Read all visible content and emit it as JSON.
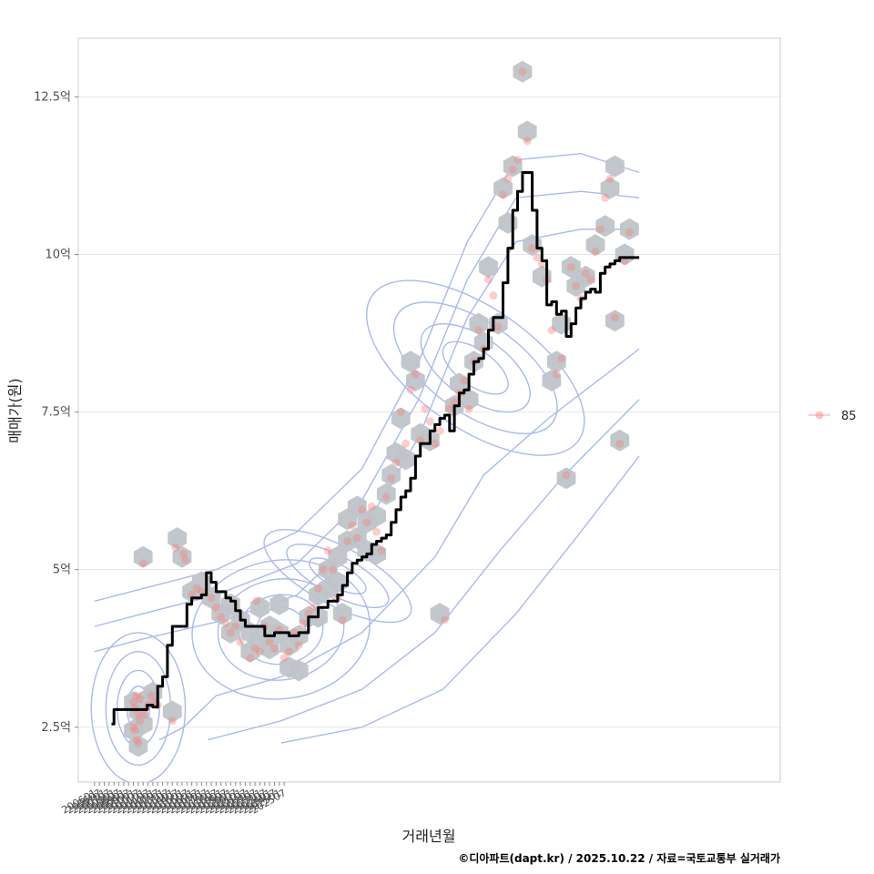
{
  "chart_data": {
    "type": "scatter",
    "xlabel": "거래년월",
    "ylabel": "매매가(원)",
    "caption": "©디아파트(dapt.kr) / 2025.10.22 / 자료=국토교통부 실거래가",
    "legend": {
      "label": "85",
      "position": "right"
    },
    "colors": {
      "points": "#f4837d",
      "line": "#000000",
      "contour": "#a9b9ee",
      "hex": "#bfc4c9",
      "grid": "#e5e5e5",
      "panel_border": "#cccccc"
    },
    "x_ticks": [
      "200601",
      "200607",
      "200701",
      "200707",
      "200801",
      "200807",
      "200901",
      "200907",
      "201001",
      "201007",
      "201101",
      "201107",
      "201201",
      "201207",
      "201301",
      "201307",
      "201401",
      "201407",
      "201501",
      "201507",
      "201601",
      "201607",
      "201701",
      "201707",
      "201801",
      "201807",
      "201901",
      "201907",
      "202001",
      "202007",
      "202101",
      "202107",
      "202201",
      "202207",
      "202301",
      "202307",
      "202401",
      "202407",
      "202501",
      "202507"
    ],
    "y_ticks": [
      {
        "value": 2.5,
        "label": "2.5억"
      },
      {
        "value": 5,
        "label": "5억"
      },
      {
        "value": 7.5,
        "label": "7.5억"
      },
      {
        "value": 10,
        "label": "10억"
      },
      {
        "value": 12.5,
        "label": "12.5억"
      }
    ],
    "x_range_months": [
      -20,
      846
    ],
    "y_range": [
      1.63,
      13.43
    ],
    "series": [
      {
        "name": "median",
        "type": "line",
        "points": [
          [
            21,
            2.55
          ],
          [
            24,
            2.78
          ],
          [
            40,
            2.78
          ],
          [
            57,
            2.78
          ],
          [
            60,
            2.78
          ],
          [
            65,
            2.85
          ],
          [
            72,
            2.82
          ],
          [
            78,
            3.15
          ],
          [
            84,
            3.3
          ],
          [
            90,
            3.8
          ],
          [
            96,
            4.1
          ],
          [
            108,
            4.1
          ],
          [
            114,
            4.45
          ],
          [
            120,
            4.55
          ],
          [
            132,
            4.6
          ],
          [
            138,
            4.95
          ],
          [
            144,
            4.8
          ],
          [
            150,
            4.65
          ],
          [
            162,
            4.55
          ],
          [
            168,
            4.5
          ],
          [
            174,
            4.35
          ],
          [
            180,
            4.2
          ],
          [
            186,
            4.1
          ],
          [
            198,
            4.1
          ],
          [
            210,
            3.95
          ],
          [
            222,
            4.0
          ],
          [
            240,
            3.95
          ],
          [
            246,
            3.95
          ],
          [
            252,
            4.0
          ],
          [
            264,
            4.25
          ],
          [
            276,
            4.4
          ],
          [
            288,
            4.5
          ],
          [
            300,
            4.6
          ],
          [
            306,
            4.75
          ],
          [
            312,
            4.95
          ],
          [
            318,
            5.1
          ],
          [
            324,
            5.15
          ],
          [
            330,
            5.2
          ],
          [
            336,
            5.25
          ],
          [
            342,
            5.4
          ],
          [
            348,
            5.45
          ],
          [
            354,
            5.5
          ],
          [
            360,
            5.55
          ],
          [
            366,
            5.75
          ],
          [
            372,
            5.95
          ],
          [
            378,
            6.15
          ],
          [
            384,
            6.25
          ],
          [
            390,
            6.45
          ],
          [
            396,
            6.8
          ],
          [
            402,
            7.0
          ],
          [
            408,
            7.0
          ],
          [
            414,
            7.2
          ],
          [
            420,
            7.3
          ],
          [
            426,
            7.4
          ],
          [
            432,
            7.45
          ],
          [
            438,
            7.2
          ],
          [
            444,
            7.6
          ],
          [
            450,
            7.8
          ],
          [
            456,
            7.85
          ],
          [
            462,
            8.1
          ],
          [
            468,
            8.3
          ],
          [
            474,
            8.35
          ],
          [
            480,
            8.5
          ],
          [
            486,
            8.8
          ],
          [
            492,
            9.0
          ],
          [
            498,
            9.0
          ],
          [
            504,
            9.55
          ],
          [
            510,
            10.1
          ],
          [
            516,
            10.7
          ],
          [
            522,
            11.0
          ],
          [
            528,
            11.3
          ],
          [
            534,
            11.3
          ],
          [
            540,
            10.7
          ],
          [
            546,
            10.1
          ],
          [
            552,
            9.9
          ],
          [
            558,
            9.2
          ],
          [
            564,
            9.25
          ],
          [
            570,
            9.05
          ],
          [
            576,
            9.1
          ],
          [
            582,
            8.7
          ],
          [
            588,
            8.9
          ],
          [
            594,
            9.15
          ],
          [
            600,
            9.3
          ],
          [
            606,
            9.4
          ],
          [
            612,
            9.45
          ],
          [
            618,
            9.4
          ],
          [
            624,
            9.7
          ],
          [
            630,
            9.8
          ],
          [
            636,
            9.85
          ],
          [
            642,
            9.9
          ],
          [
            648,
            9.95
          ],
          [
            654,
            9.95
          ],
          [
            660,
            9.95
          ],
          [
            672,
            9.95
          ]
        ]
      },
      {
        "name": "85",
        "type": "scatter",
        "points": [
          [
            60,
            5.1
          ],
          [
            48,
            2.9
          ],
          [
            50,
            2.8
          ],
          [
            52,
            3.0
          ],
          [
            54,
            2.7
          ],
          [
            56,
            2.6
          ],
          [
            50,
            2.45
          ],
          [
            52,
            2.3
          ],
          [
            54,
            2.25
          ],
          [
            48,
            2.5
          ],
          [
            56,
            2.95
          ],
          [
            62,
            2.7
          ],
          [
            66,
            2.85
          ],
          [
            70,
            3.0
          ],
          [
            74,
            2.9
          ],
          [
            78,
            2.85
          ],
          [
            96,
            2.6
          ],
          [
            100,
            5.35
          ],
          [
            110,
            5.25
          ],
          [
            112,
            5.15
          ],
          [
            120,
            4.6
          ],
          [
            126,
            4.7
          ],
          [
            132,
            4.65
          ],
          [
            144,
            4.55
          ],
          [
            150,
            4.4
          ],
          [
            156,
            4.25
          ],
          [
            162,
            4.15
          ],
          [
            168,
            4.0
          ],
          [
            174,
            4.1
          ],
          [
            180,
            3.85
          ],
          [
            192,
            3.6
          ],
          [
            198,
            3.75
          ],
          [
            200,
            4.5
          ],
          [
            204,
            3.7
          ],
          [
            210,
            4.1
          ],
          [
            216,
            3.85
          ],
          [
            222,
            3.75
          ],
          [
            228,
            4.05
          ],
          [
            234,
            3.6
          ],
          [
            240,
            3.7
          ],
          [
            246,
            4.0
          ],
          [
            252,
            3.8
          ],
          [
            258,
            4.15
          ],
          [
            264,
            4.3
          ],
          [
            270,
            4.4
          ],
          [
            276,
            4.7
          ],
          [
            282,
            5.0
          ],
          [
            288,
            5.3
          ],
          [
            294,
            5.0
          ],
          [
            300,
            4.55
          ],
          [
            306,
            4.2
          ],
          [
            312,
            5.45
          ],
          [
            318,
            5.7
          ],
          [
            324,
            5.5
          ],
          [
            330,
            5.95
          ],
          [
            336,
            5.75
          ],
          [
            342,
            6.0
          ],
          [
            348,
            5.6
          ],
          [
            354,
            5.3
          ],
          [
            360,
            6.15
          ],
          [
            366,
            6.45
          ],
          [
            372,
            6.7
          ],
          [
            378,
            7.5
          ],
          [
            384,
            7.0
          ],
          [
            390,
            7.85
          ],
          [
            396,
            8.1
          ],
          [
            402,
            7.05
          ],
          [
            408,
            7.55
          ],
          [
            414,
            7.35
          ],
          [
            420,
            7.0
          ],
          [
            426,
            7.2
          ],
          [
            432,
            4.2
          ],
          [
            438,
            7.55
          ],
          [
            444,
            7.65
          ],
          [
            450,
            7.8
          ],
          [
            456,
            8.0
          ],
          [
            462,
            7.55
          ],
          [
            468,
            8.3
          ],
          [
            474,
            8.8
          ],
          [
            480,
            8.5
          ],
          [
            486,
            9.6
          ],
          [
            492,
            9.35
          ],
          [
            498,
            8.85
          ],
          [
            504,
            10.95
          ],
          [
            510,
            11.2
          ],
          [
            516,
            11.35
          ],
          [
            522,
            11.5
          ],
          [
            528,
            12.9
          ],
          [
            534,
            11.8
          ],
          [
            540,
            10.1
          ],
          [
            546,
            9.95
          ],
          [
            552,
            9.85
          ],
          [
            558,
            9.6
          ],
          [
            564,
            8.8
          ],
          [
            570,
            8.1
          ],
          [
            576,
            8.35
          ],
          [
            582,
            6.5
          ],
          [
            588,
            9.8
          ],
          [
            594,
            9.5
          ],
          [
            600,
            9.3
          ],
          [
            606,
            9.7
          ],
          [
            612,
            9.6
          ],
          [
            618,
            10.05
          ],
          [
            624,
            10.4
          ],
          [
            630,
            10.9
          ],
          [
            636,
            11.2
          ],
          [
            642,
            9.0
          ],
          [
            648,
            7.0
          ],
          [
            654,
            9.9
          ],
          [
            660,
            10.35
          ]
        ]
      },
      {
        "name": "hex-density",
        "type": "hexbin",
        "points": [
          [
            60,
            5.2
          ],
          [
            48,
            2.9
          ],
          [
            54,
            2.75
          ],
          [
            48,
            2.45
          ],
          [
            54,
            2.2
          ],
          [
            60,
            2.55
          ],
          [
            66,
            2.95
          ],
          [
            72,
            3.05
          ],
          [
            96,
            2.75
          ],
          [
            102,
            5.5
          ],
          [
            108,
            5.2
          ],
          [
            120,
            4.65
          ],
          [
            132,
            4.8
          ],
          [
            144,
            4.55
          ],
          [
            156,
            4.3
          ],
          [
            168,
            4.45
          ],
          [
            168,
            4.0
          ],
          [
            180,
            4.2
          ],
          [
            192,
            4.0
          ],
          [
            192,
            3.7
          ],
          [
            204,
            4.4
          ],
          [
            204,
            3.9
          ],
          [
            216,
            4.1
          ],
          [
            216,
            3.75
          ],
          [
            228,
            4.45
          ],
          [
            228,
            4.0
          ],
          [
            240,
            3.8
          ],
          [
            240,
            3.45
          ],
          [
            252,
            3.95
          ],
          [
            252,
            3.4
          ],
          [
            264,
            4.25
          ],
          [
            276,
            4.6
          ],
          [
            276,
            4.25
          ],
          [
            288,
            5.0
          ],
          [
            288,
            4.7
          ],
          [
            300,
            5.2
          ],
          [
            300,
            4.8
          ],
          [
            306,
            4.3
          ],
          [
            312,
            5.45
          ],
          [
            312,
            5.8
          ],
          [
            324,
            5.5
          ],
          [
            324,
            6.0
          ],
          [
            336,
            5.75
          ],
          [
            336,
            5.3
          ],
          [
            348,
            5.85
          ],
          [
            348,
            5.25
          ],
          [
            360,
            6.2
          ],
          [
            366,
            6.5
          ],
          [
            372,
            6.85
          ],
          [
            378,
            7.4
          ],
          [
            384,
            6.75
          ],
          [
            390,
            8.3
          ],
          [
            396,
            8.0
          ],
          [
            402,
            7.15
          ],
          [
            414,
            7.05
          ],
          [
            426,
            4.3
          ],
          [
            444,
            7.6
          ],
          [
            450,
            7.95
          ],
          [
            462,
            7.7
          ],
          [
            468,
            8.3
          ],
          [
            474,
            8.9
          ],
          [
            480,
            8.6
          ],
          [
            486,
            9.8
          ],
          [
            498,
            8.9
          ],
          [
            504,
            11.05
          ],
          [
            510,
            10.5
          ],
          [
            516,
            11.4
          ],
          [
            528,
            12.9
          ],
          [
            534,
            11.95
          ],
          [
            540,
            10.15
          ],
          [
            552,
            9.65
          ],
          [
            564,
            8.0
          ],
          [
            570,
            8.3
          ],
          [
            576,
            8.9
          ],
          [
            582,
            6.45
          ],
          [
            588,
            9.8
          ],
          [
            594,
            9.5
          ],
          [
            606,
            9.65
          ],
          [
            618,
            10.15
          ],
          [
            630,
            10.45
          ],
          [
            636,
            11.05
          ],
          [
            642,
            11.4
          ],
          [
            642,
            8.95
          ],
          [
            648,
            7.05
          ],
          [
            654,
            10.0
          ],
          [
            660,
            10.4
          ]
        ]
      }
    ]
  }
}
